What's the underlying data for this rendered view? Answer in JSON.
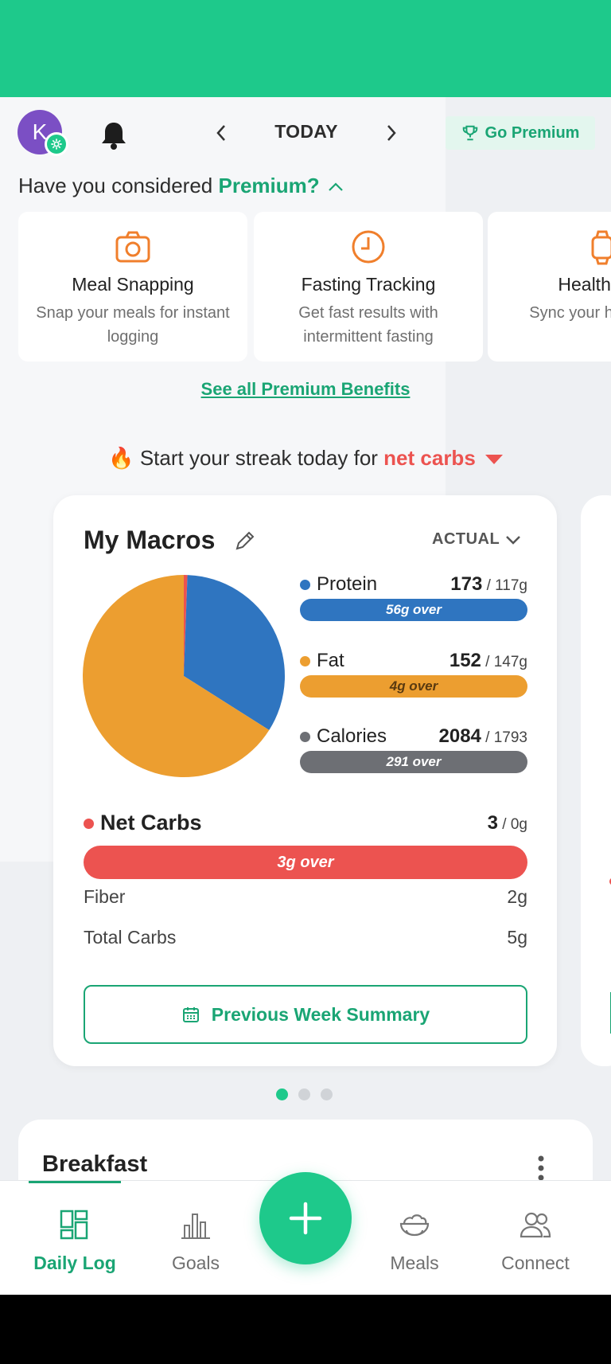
{
  "header": {
    "avatar_initial": "K",
    "date_label": "TODAY",
    "premium_button": "Go Premium"
  },
  "premium_prompt": {
    "text": "Have you considered ",
    "highlight": "Premium?"
  },
  "benefits": [
    {
      "icon": "camera-icon",
      "title": "Meal Snapping",
      "desc": "Snap your meals for instant logging"
    },
    {
      "icon": "clock-icon",
      "title": "Fasting Tracking",
      "desc": "Get fast results with intermittent fasting"
    },
    {
      "icon": "watch-icon",
      "title": "Health Inte",
      "desc": "Sync your h automat"
    }
  ],
  "see_all": "See all Premium Benefits",
  "streak": {
    "emoji": "🔥",
    "text": "Start your streak today for ",
    "highlight": "net carbs"
  },
  "macros": {
    "title": "My Macros",
    "view_mode": "ACTUAL",
    "items": [
      {
        "name": "Protein",
        "actual": "173",
        "goal": " / 117g",
        "status": "56g over",
        "color": "#2f75c0"
      },
      {
        "name": "Fat",
        "actual": "152",
        "goal": " / 147g",
        "status": "4g over",
        "color": "#ec9e30"
      },
      {
        "name": "Calories",
        "actual": "2084",
        "goal": " / 1793",
        "status": "291 over",
        "color": "#6d6f74"
      }
    ],
    "pie": [
      {
        "name": "Net Carbs",
        "value": 3,
        "color": "#ec5350"
      },
      {
        "name": "Protein",
        "value": 173,
        "color": "#2f75c0"
      },
      {
        "name": "Fat",
        "value": 342,
        "color": "#ec9e30"
      }
    ],
    "net_carbs": {
      "name": "Net Carbs",
      "actual": "3",
      "goal": " / 0g",
      "status": "3g over",
      "color": "#ec5350"
    },
    "fiber": {
      "label": "Fiber",
      "value": "2g"
    },
    "total_carbs": {
      "label": "Total Carbs",
      "value": "5g"
    },
    "summary_button": "Previous Week Summary"
  },
  "carousel": {
    "count": 3,
    "active": 0
  },
  "breakfast": {
    "title": "Breakfast"
  },
  "nav": [
    {
      "label": "Daily Log",
      "icon": "daily-log-icon",
      "active": true
    },
    {
      "label": "Goals",
      "icon": "goals-bar-chart-icon",
      "active": false
    },
    {
      "label": "Meals",
      "icon": "meals-bowl-icon",
      "active": false
    },
    {
      "label": "Connect",
      "icon": "connect-people-icon",
      "active": false
    }
  ],
  "colors": {
    "brand": "#1ec98b",
    "brand_text": "#1aa574",
    "alert": "#ec5350"
  }
}
